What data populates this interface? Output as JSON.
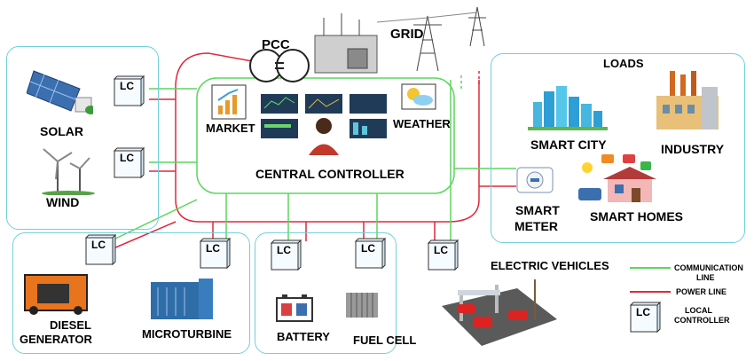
{
  "labels": {
    "pcc": "PCC",
    "grid": "GRID",
    "solar": "SOLAR",
    "wind": "WIND",
    "market": "MARKET",
    "weather": "WEATHER",
    "central_controller": "CENTRAL CONTROLLER",
    "loads": "LOADS",
    "smart_city": "SMART CITY",
    "industry": "INDUSTRY",
    "smart_meter_line1": "SMART",
    "smart_meter_line2": "METER",
    "smart_homes": "SMART HOMES",
    "diesel_line1": "DIESEL",
    "diesel_line2": "GENERATOR",
    "microturbine": "MICROTURBINE",
    "battery": "BATTERY",
    "fuel_cell": "FUEL CELL",
    "electric_vehicles": "ELECTRIC VEHICLES"
  },
  "lc_label": "LC",
  "legend": {
    "communication_line1": "COMMUNICATION",
    "communication_line2": "LINE",
    "power_line": "POWER LINE",
    "local_controller_line1": "LOCAL",
    "local_controller_line2": "CONTROLLER",
    "lc": "LC"
  },
  "colors": {
    "communication": "#5cd65c",
    "power": "#e0283c",
    "panel_border": "#6fd0dc"
  }
}
